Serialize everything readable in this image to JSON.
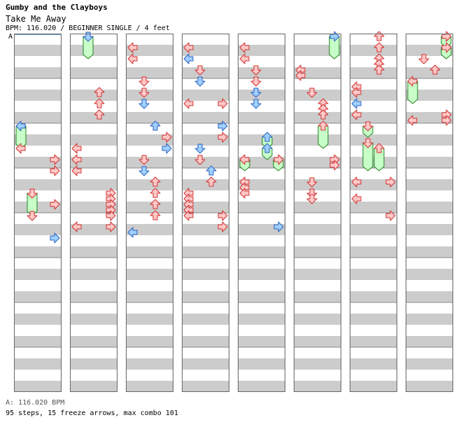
{
  "header": {
    "artist": "Gumby and the Clayboys",
    "title": "Take Me Away",
    "meta": "BPM: 116.020 / BEGINNER SINGLE / 4 feet"
  },
  "bpm_marker": "A",
  "footer": {
    "bpm_legend": "A: 116.020 BPM",
    "stats": "95 steps, 15 freeze arrows, max combo 101"
  },
  "colors": {
    "stripe": "#cccccc",
    "measure_line": "#888888",
    "tap_red": "#ffc8c8",
    "tap_red_stroke": "#d03030",
    "tap_blue": "#a0d0ff",
    "tap_blue_stroke": "#2860c0",
    "freeze": "#c8ffc8",
    "freeze_stroke": "#208020"
  },
  "chart_data": {
    "type": "step-chart",
    "columns": 8,
    "measures_per_column": 8,
    "rows_per_measure": 8,
    "lanes": [
      "left",
      "down",
      "up",
      "right"
    ],
    "taps": [
      [
        0,
        0,
        20,
        1
      ],
      [
        0,
        3,
        22,
        1
      ],
      [
        0,
        3,
        24,
        1
      ],
      [
        0,
        3,
        30,
        1
      ],
      [
        0,
        1,
        32,
        4
      ],
      [
        0,
        3,
        36,
        0
      ],
      [
        1,
        2,
        10,
        1
      ],
      [
        1,
        2,
        12,
        1
      ],
      [
        1,
        2,
        14,
        1
      ],
      [
        1,
        0,
        20,
        1
      ],
      [
        1,
        0,
        22,
        1
      ],
      [
        1,
        0,
        24,
        1
      ],
      [
        1,
        3,
        28,
        1
      ],
      [
        1,
        3,
        29,
        1
      ],
      [
        1,
        3,
        30,
        1
      ],
      [
        1,
        3,
        31,
        1
      ],
      [
        1,
        3,
        32,
        1
      ],
      [
        1,
        0,
        34,
        1
      ],
      [
        1,
        3,
        34,
        1
      ],
      [
        2,
        0,
        2,
        1
      ],
      [
        2,
        0,
        4,
        1
      ],
      [
        2,
        1,
        8,
        1
      ],
      [
        2,
        1,
        10,
        1
      ],
      [
        2,
        1,
        12,
        0
      ],
      [
        2,
        2,
        16,
        0
      ],
      [
        2,
        3,
        18,
        1
      ],
      [
        2,
        3,
        20,
        0
      ],
      [
        2,
        1,
        22,
        1
      ],
      [
        2,
        1,
        24,
        0
      ],
      [
        2,
        2,
        26,
        1
      ],
      [
        2,
        2,
        28,
        1
      ],
      [
        2,
        2,
        30,
        1
      ],
      [
        2,
        2,
        32,
        1
      ],
      [
        2,
        0,
        35,
        0
      ],
      [
        3,
        0,
        2,
        1
      ],
      [
        3,
        0,
        4,
        0
      ],
      [
        3,
        1,
        6,
        1
      ],
      [
        3,
        1,
        8,
        0
      ],
      [
        3,
        0,
        12,
        1
      ],
      [
        3,
        3,
        12,
        1
      ],
      [
        3,
        3,
        16,
        0
      ],
      [
        3,
        3,
        18,
        1
      ],
      [
        3,
        1,
        20,
        0
      ],
      [
        3,
        1,
        22,
        1
      ],
      [
        3,
        2,
        24,
        0
      ],
      [
        3,
        2,
        26,
        1
      ],
      [
        3,
        0,
        28,
        1
      ],
      [
        3,
        0,
        29,
        1
      ],
      [
        3,
        0,
        30,
        1
      ],
      [
        3,
        0,
        31,
        1
      ],
      [
        3,
        0,
        32,
        1
      ],
      [
        3,
        3,
        32,
        1
      ],
      [
        3,
        3,
        34,
        1
      ],
      [
        4,
        0,
        2,
        1
      ],
      [
        4,
        0,
        4,
        1
      ],
      [
        4,
        1,
        6,
        1
      ],
      [
        4,
        1,
        8,
        1
      ],
      [
        4,
        1,
        10,
        0
      ],
      [
        4,
        1,
        12,
        0
      ],
      [
        4,
        3,
        22,
        1
      ],
      [
        4,
        0,
        26,
        1
      ],
      [
        4,
        0,
        27,
        1
      ],
      [
        4,
        0,
        28,
        1
      ],
      [
        4,
        3,
        34,
        0
      ],
      [
        5,
        0,
        6,
        1
      ],
      [
        5,
        0,
        7,
        1
      ],
      [
        5,
        1,
        10,
        1
      ],
      [
        5,
        2,
        12,
        1
      ],
      [
        5,
        2,
        13,
        1
      ],
      [
        5,
        2,
        14,
        1
      ],
      [
        5,
        3,
        22,
        1
      ],
      [
        5,
        3,
        23,
        1
      ],
      [
        5,
        1,
        26,
        1
      ],
      [
        5,
        1,
        28,
        1
      ],
      [
        5,
        1,
        29,
        1
      ],
      [
        6,
        2,
        0,
        1
      ],
      [
        6,
        2,
        2,
        1
      ],
      [
        6,
        2,
        4,
        1
      ],
      [
        6,
        2,
        5,
        1
      ],
      [
        6,
        2,
        6,
        1
      ],
      [
        6,
        0,
        9,
        1
      ],
      [
        6,
        0,
        10,
        1
      ],
      [
        6,
        0,
        12,
        0
      ],
      [
        6,
        0,
        14,
        1
      ],
      [
        6,
        0,
        26,
        1
      ],
      [
        6,
        3,
        26,
        1
      ],
      [
        6,
        0,
        29,
        1
      ],
      [
        6,
        3,
        32,
        1
      ],
      [
        7,
        3,
        0,
        1
      ],
      [
        7,
        3,
        2,
        1
      ],
      [
        7,
        1,
        4,
        1
      ],
      [
        7,
        2,
        6,
        1
      ],
      [
        7,
        3,
        14,
        1
      ],
      [
        7,
        0,
        15,
        1
      ],
      [
        7,
        3,
        15,
        1
      ]
    ],
    "freezes": [
      [
        0,
        0,
        16,
        20,
        0
      ],
      [
        0,
        1,
        28,
        32,
        1
      ],
      [
        1,
        1,
        0,
        4,
        0
      ],
      [
        4,
        2,
        18,
        20,
        0
      ],
      [
        4,
        2,
        20,
        22,
        0
      ],
      [
        4,
        0,
        22,
        24,
        1
      ],
      [
        4,
        3,
        22,
        24,
        1
      ],
      [
        5,
        3,
        0,
        4,
        0
      ],
      [
        5,
        2,
        16,
        20,
        1
      ],
      [
        6,
        1,
        16,
        18,
        1
      ],
      [
        6,
        1,
        19,
        24,
        1
      ],
      [
        6,
        2,
        20,
        24,
        1
      ],
      [
        7,
        3,
        0,
        2,
        1
      ],
      [
        7,
        3,
        2,
        4,
        1
      ],
      [
        7,
        0,
        8,
        12,
        1
      ]
    ]
  }
}
